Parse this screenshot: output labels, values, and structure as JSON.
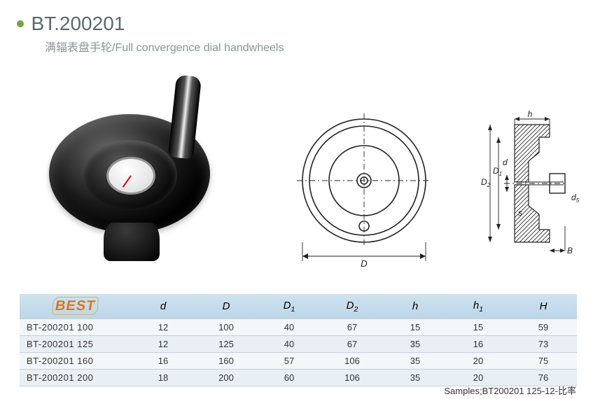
{
  "header": {
    "bullet_color": "#6fa545",
    "code": "BT.200201",
    "code_color": "#5a6a6a",
    "subtitle": "满辐表盘手轮/Full convergence dial handwheels",
    "subtitle_color": "#8a9494"
  },
  "figures": {
    "front_view": {
      "outer_diameter_label": "D",
      "stroke_color": "#222222"
    },
    "side_view": {
      "labels": {
        "h": "h",
        "D2": "D",
        "D2_sub": "2",
        "D1": "D",
        "D1_sub": "1",
        "d": "d",
        "d5": "d",
        "d5_sub": "5",
        "s": "s",
        "B": "B"
      },
      "hatch_color": "#222222"
    }
  },
  "table": {
    "logo_text": "BEST",
    "logo_color": "#e07515",
    "header_bg": "#bcd6e8",
    "header_bg_grad_to": "#cfe2ef",
    "row_alt_bg": "#e8eff5",
    "row_bg": "#f4f7fa",
    "border_color": "#c8cfd4",
    "columns": [
      "",
      "d",
      "D",
      "D1",
      "D2",
      "h",
      "h1",
      "H"
    ],
    "columns_sub": [
      "",
      "",
      "",
      "1",
      "2",
      "",
      "1",
      ""
    ],
    "col_widths": [
      "160px",
      "90px",
      "90px",
      "90px",
      "90px",
      "90px",
      "90px",
      "96px"
    ],
    "rows": [
      {
        "model": "BT-200201  100",
        "d": "12",
        "D": "100",
        "D1": "40",
        "D2": "67",
        "h": "15",
        "h1": "15",
        "H": "59"
      },
      {
        "model": "BT-200201  125",
        "d": "12",
        "D": "125",
        "D1": "40",
        "D2": "67",
        "h": "35",
        "h1": "16",
        "H": "73"
      },
      {
        "model": "BT-200201  160",
        "d": "16",
        "D": "160",
        "D1": "57",
        "D2": "106",
        "h": "35",
        "h1": "20",
        "H": "75"
      },
      {
        "model": "BT-200201  200",
        "d": "18",
        "D": "200",
        "D1": "60",
        "D2": "106",
        "h": "35",
        "h1": "20",
        "H": "76"
      }
    ]
  },
  "footer": {
    "text": "Samples;BT200201 125-12-比率"
  }
}
